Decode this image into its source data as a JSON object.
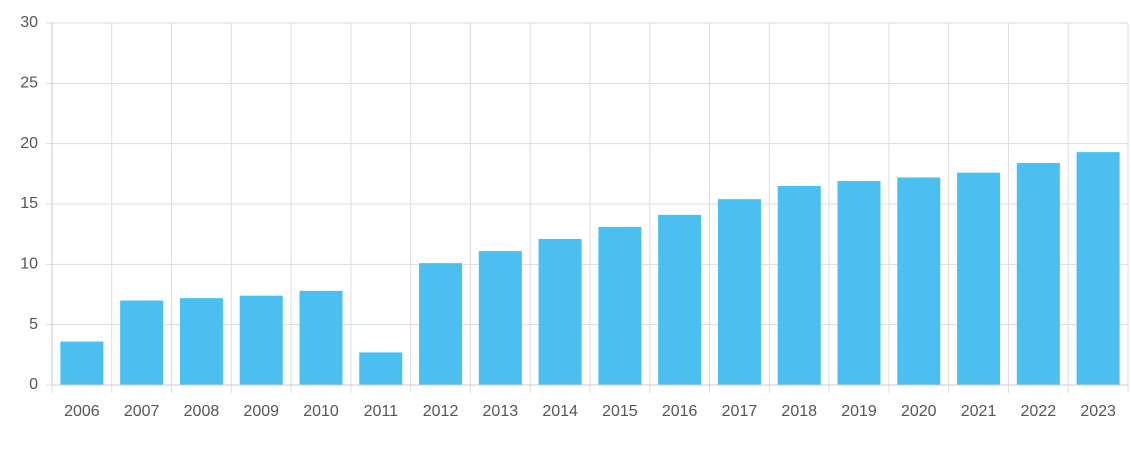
{
  "chart_data": {
    "type": "bar",
    "categories": [
      "2006",
      "2007",
      "2008",
      "2009",
      "2010",
      "2011",
      "2012",
      "2013",
      "2014",
      "2015",
      "2016",
      "2017",
      "2018",
      "2019",
      "2020",
      "2021",
      "2022",
      "2023"
    ],
    "values": [
      3.6,
      7.0,
      7.2,
      7.4,
      7.8,
      2.7,
      10.1,
      11.1,
      12.1,
      13.1,
      14.1,
      15.4,
      16.5,
      16.9,
      17.2,
      17.6,
      18.4,
      19.3
    ],
    "color": "#4bc0f0",
    "ylim": [
      0,
      30
    ],
    "yticks": [
      0,
      5,
      10,
      15,
      20,
      25,
      30
    ],
    "grid": true
  }
}
